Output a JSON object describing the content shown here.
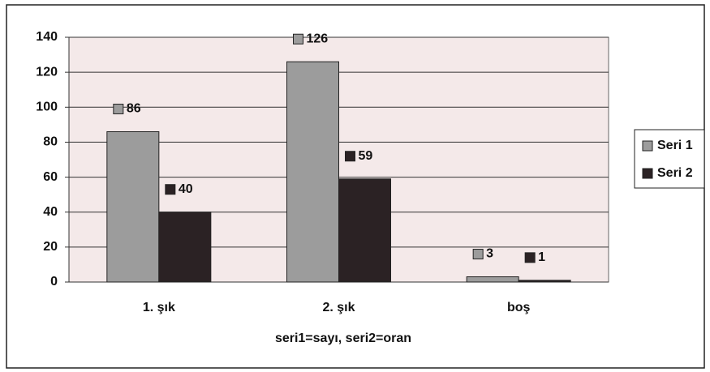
{
  "chart_data": {
    "type": "bar",
    "categories": [
      "1. şık",
      "2. şık",
      "boş"
    ],
    "series": [
      {
        "name": "Seri 1",
        "color": "#9c9c9c",
        "values": [
          86,
          126,
          3
        ]
      },
      {
        "name": "Seri 2",
        "color": "#2b2224",
        "values": [
          40,
          59,
          1
        ]
      }
    ],
    "x_label": "seri1=sayı, seri2=oran",
    "ylim": [
      0,
      140
    ],
    "yticks": [
      0,
      20,
      40,
      60,
      80,
      100,
      120,
      140
    ],
    "grid": true,
    "legend": "right"
  }
}
